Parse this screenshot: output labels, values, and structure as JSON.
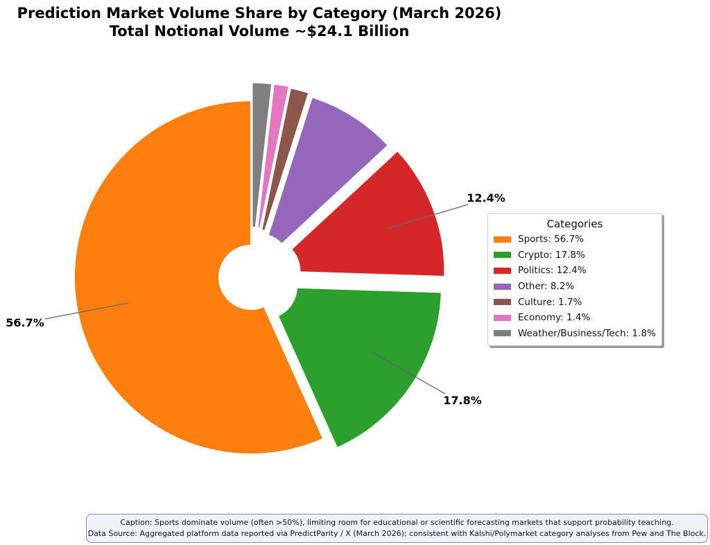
{
  "chart_data": {
    "type": "pie",
    "title": "Prediction Market Volume Share by Category (March 2026)",
    "subtitle": "Total Notional Volume ~$24.1 Billion",
    "legend_title": "Categories",
    "legend_position": "right",
    "slices": [
      {
        "name": "Sports",
        "value": 56.7,
        "pct_label": "56.7%",
        "legend_label": "Sports: 56.7%",
        "color": "#ff7f0e"
      },
      {
        "name": "Crypto",
        "value": 17.8,
        "pct_label": "17.8%",
        "legend_label": "Crypto: 17.8%",
        "color": "#2ca02c"
      },
      {
        "name": "Politics",
        "value": 12.4,
        "pct_label": "12.4%",
        "legend_label": "Politics: 12.4%",
        "color": "#d62728"
      },
      {
        "name": "Other",
        "value": 8.2,
        "pct_label": "",
        "legend_label": "Other: 8.2%",
        "color": "#9467bd"
      },
      {
        "name": "Culture",
        "value": 1.7,
        "pct_label": "",
        "legend_label": "Culture: 1.7%",
        "color": "#8c564b"
      },
      {
        "name": "Economy",
        "value": 1.4,
        "pct_label": "",
        "legend_label": "Economy: 1.4%",
        "color": "#e377c2"
      },
      {
        "name": "Weather/Business/Tech",
        "value": 1.8,
        "pct_label": "",
        "legend_label": "Weather/Business/Tech: 1.8%",
        "color": "#7f7f7f"
      }
    ],
    "caption": "Caption: Sports dominate volume (often >50%), limiting room for educational or scientific forecasting markets that support probability teaching.",
    "source": "Data Source: Aggregated platform data reported via PredictParity / X (March 2026); consistent with Kalshi/Polymarket category analyses from Pew and The Block."
  }
}
